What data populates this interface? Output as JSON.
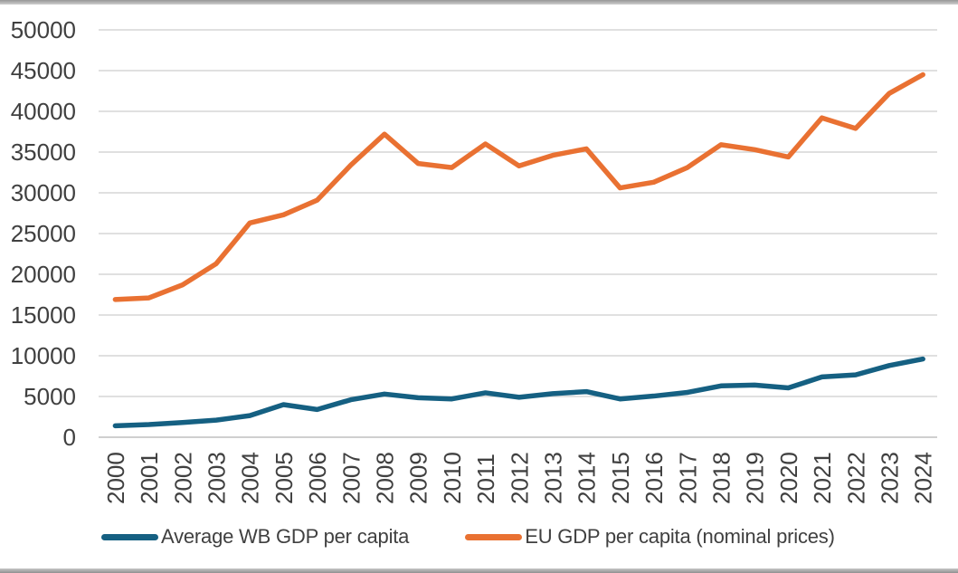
{
  "chart_data": {
    "type": "line",
    "title": "",
    "xlabel": "",
    "ylabel": "",
    "x": [
      "2000",
      "2001",
      "2002",
      "2003",
      "2004",
      "2005",
      "2006",
      "2007",
      "2008",
      "2009",
      "2010",
      "2011",
      "2012",
      "2013",
      "2014",
      "2015",
      "2016",
      "2017",
      "2018",
      "2019",
      "2020",
      "2021",
      "2022",
      "2023",
      "2024"
    ],
    "series": [
      {
        "name": "Average WB GDP per capita",
        "color": "#156082",
        "values": [
          1400,
          1550,
          1800,
          2100,
          2650,
          4000,
          3400,
          4600,
          5300,
          4850,
          4700,
          5450,
          4900,
          5350,
          5600,
          4700,
          5050,
          5500,
          6300,
          6400,
          6050,
          7400,
          7650,
          8800,
          9600
        ]
      },
      {
        "name": "EU GDP per capita (nominal prices)",
        "color": "#E97132",
        "values": [
          16900,
          17100,
          18700,
          21300,
          26300,
          27300,
          29100,
          33400,
          37200,
          33600,
          33100,
          36000,
          33300,
          34600,
          35400,
          30600,
          31300,
          33100,
          35900,
          35300,
          34400,
          39200,
          37900,
          42200,
          44500
        ]
      }
    ],
    "ylim": [
      0,
      50000
    ],
    "ytick_step": 5000,
    "ytick_labels": [
      "0",
      "5000",
      "10000",
      "15000",
      "20000",
      "25000",
      "30000",
      "35000",
      "40000",
      "45000",
      "50000"
    ],
    "grid": "horizontal",
    "legend_position": "bottom",
    "styles": {
      "gridline_color": "#D6D6D6",
      "axis_line_color": "#BFBFBF",
      "label_color": "#404040"
    }
  }
}
